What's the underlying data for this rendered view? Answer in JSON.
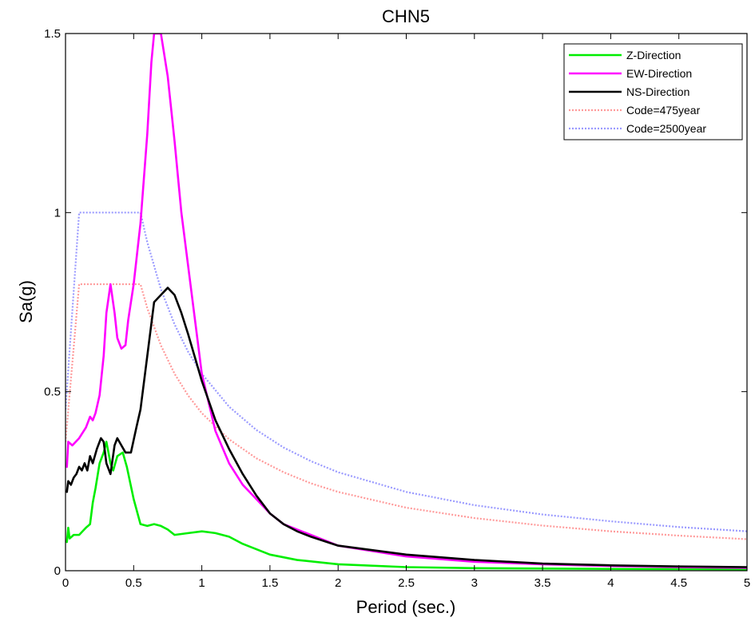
{
  "chart_data": {
    "type": "line",
    "title": "CHN5",
    "xlabel": "Period (sec.)",
    "ylabel": "Sa(g)",
    "xlim": [
      0,
      5
    ],
    "ylim": [
      0,
      1.5
    ],
    "x_ticks": [
      "0",
      "0.5",
      "1",
      "1.5",
      "2",
      "2.5",
      "3",
      "3.5",
      "4",
      "4.5",
      "5"
    ],
    "y_ticks": [
      "0",
      "0.5",
      "1",
      "1.5"
    ],
    "grid": false,
    "legend_position": "top-right",
    "series": [
      {
        "name": "Z-Direction",
        "color": "#00ee00",
        "style": "solid",
        "points": [
          [
            0.01,
            0.08
          ],
          [
            0.02,
            0.12
          ],
          [
            0.03,
            0.09
          ],
          [
            0.06,
            0.1
          ],
          [
            0.1,
            0.1
          ],
          [
            0.15,
            0.12
          ],
          [
            0.18,
            0.13
          ],
          [
            0.2,
            0.19
          ],
          [
            0.22,
            0.23
          ],
          [
            0.25,
            0.3
          ],
          [
            0.28,
            0.33
          ],
          [
            0.3,
            0.36
          ],
          [
            0.33,
            0.3
          ],
          [
            0.35,
            0.28
          ],
          [
            0.38,
            0.32
          ],
          [
            0.42,
            0.33
          ],
          [
            0.45,
            0.29
          ],
          [
            0.5,
            0.2
          ],
          [
            0.55,
            0.13
          ],
          [
            0.6,
            0.125
          ],
          [
            0.65,
            0.13
          ],
          [
            0.7,
            0.125
          ],
          [
            0.75,
            0.115
          ],
          [
            0.8,
            0.1
          ],
          [
            0.9,
            0.105
          ],
          [
            1.0,
            0.11
          ],
          [
            1.1,
            0.105
          ],
          [
            1.2,
            0.095
          ],
          [
            1.3,
            0.075
          ],
          [
            1.4,
            0.06
          ],
          [
            1.5,
            0.045
          ],
          [
            1.7,
            0.03
          ],
          [
            2.0,
            0.018
          ],
          [
            2.5,
            0.01
          ],
          [
            3.0,
            0.007
          ],
          [
            4.0,
            0.005
          ],
          [
            5.0,
            0.004
          ]
        ]
      },
      {
        "name": "EW-Direction",
        "color": "#ff00ff",
        "style": "solid",
        "points": [
          [
            0.01,
            0.29
          ],
          [
            0.02,
            0.36
          ],
          [
            0.05,
            0.35
          ],
          [
            0.1,
            0.37
          ],
          [
            0.15,
            0.4
          ],
          [
            0.18,
            0.43
          ],
          [
            0.2,
            0.42
          ],
          [
            0.22,
            0.44
          ],
          [
            0.25,
            0.49
          ],
          [
            0.28,
            0.6
          ],
          [
            0.3,
            0.72
          ],
          [
            0.33,
            0.8
          ],
          [
            0.36,
            0.72
          ],
          [
            0.38,
            0.65
          ],
          [
            0.41,
            0.62
          ],
          [
            0.44,
            0.63
          ],
          [
            0.46,
            0.7
          ],
          [
            0.5,
            0.8
          ],
          [
            0.55,
            0.97
          ],
          [
            0.6,
            1.22
          ],
          [
            0.63,
            1.42
          ],
          [
            0.65,
            1.5
          ],
          [
            0.68,
            1.5
          ],
          [
            0.7,
            1.5
          ],
          [
            0.75,
            1.38
          ],
          [
            0.8,
            1.2
          ],
          [
            0.85,
            1.0
          ],
          [
            0.9,
            0.85
          ],
          [
            0.95,
            0.7
          ],
          [
            1.0,
            0.55
          ],
          [
            1.1,
            0.39
          ],
          [
            1.2,
            0.3
          ],
          [
            1.3,
            0.24
          ],
          [
            1.4,
            0.2
          ],
          [
            1.5,
            0.16
          ],
          [
            1.6,
            0.13
          ],
          [
            1.7,
            0.115
          ],
          [
            1.8,
            0.1
          ],
          [
            2.0,
            0.07
          ],
          [
            2.5,
            0.04
          ],
          [
            3.0,
            0.025
          ],
          [
            3.5,
            0.018
          ],
          [
            4.0,
            0.013
          ],
          [
            4.5,
            0.01
          ],
          [
            5.0,
            0.008
          ]
        ]
      },
      {
        "name": "NS-Direction",
        "color": "#000000",
        "style": "solid",
        "points": [
          [
            0.01,
            0.22
          ],
          [
            0.02,
            0.25
          ],
          [
            0.04,
            0.24
          ],
          [
            0.06,
            0.26
          ],
          [
            0.08,
            0.27
          ],
          [
            0.1,
            0.29
          ],
          [
            0.12,
            0.28
          ],
          [
            0.14,
            0.3
          ],
          [
            0.16,
            0.28
          ],
          [
            0.18,
            0.32
          ],
          [
            0.2,
            0.3
          ],
          [
            0.23,
            0.34
          ],
          [
            0.26,
            0.37
          ],
          [
            0.28,
            0.36
          ],
          [
            0.3,
            0.3
          ],
          [
            0.33,
            0.27
          ],
          [
            0.36,
            0.35
          ],
          [
            0.38,
            0.37
          ],
          [
            0.41,
            0.35
          ],
          [
            0.44,
            0.33
          ],
          [
            0.48,
            0.33
          ],
          [
            0.52,
            0.4
          ],
          [
            0.55,
            0.45
          ],
          [
            0.6,
            0.6
          ],
          [
            0.65,
            0.75
          ],
          [
            0.7,
            0.77
          ],
          [
            0.75,
            0.79
          ],
          [
            0.8,
            0.77
          ],
          [
            0.85,
            0.72
          ],
          [
            0.9,
            0.66
          ],
          [
            1.0,
            0.53
          ],
          [
            1.1,
            0.42
          ],
          [
            1.2,
            0.34
          ],
          [
            1.3,
            0.27
          ],
          [
            1.4,
            0.21
          ],
          [
            1.5,
            0.16
          ],
          [
            1.6,
            0.13
          ],
          [
            1.7,
            0.11
          ],
          [
            1.8,
            0.095
          ],
          [
            2.0,
            0.07
          ],
          [
            2.5,
            0.045
          ],
          [
            3.0,
            0.03
          ],
          [
            3.5,
            0.02
          ],
          [
            4.0,
            0.015
          ],
          [
            4.5,
            0.012
          ],
          [
            5.0,
            0.01
          ]
        ]
      },
      {
        "name": "Code=475year",
        "color": "#ff9a9a",
        "style": "dotted",
        "points": [
          [
            0.0,
            0.36
          ],
          [
            0.1,
            0.8
          ],
          [
            0.55,
            0.8
          ],
          [
            0.6,
            0.733
          ],
          [
            0.7,
            0.629
          ],
          [
            0.8,
            0.55
          ],
          [
            0.9,
            0.489
          ],
          [
            1.0,
            0.44
          ],
          [
            1.2,
            0.367
          ],
          [
            1.4,
            0.314
          ],
          [
            1.6,
            0.275
          ],
          [
            1.8,
            0.244
          ],
          [
            2.0,
            0.22
          ],
          [
            2.5,
            0.176
          ],
          [
            3.0,
            0.147
          ],
          [
            3.5,
            0.126
          ],
          [
            4.0,
            0.11
          ],
          [
            4.5,
            0.098
          ],
          [
            5.0,
            0.088
          ]
        ]
      },
      {
        "name": "Code=2500year",
        "color": "#9a9aff",
        "style": "dotted",
        "points": [
          [
            0.0,
            0.45
          ],
          [
            0.1,
            1.0
          ],
          [
            0.55,
            1.0
          ],
          [
            0.6,
            0.917
          ],
          [
            0.7,
            0.786
          ],
          [
            0.8,
            0.688
          ],
          [
            0.9,
            0.611
          ],
          [
            1.0,
            0.55
          ],
          [
            1.2,
            0.458
          ],
          [
            1.4,
            0.393
          ],
          [
            1.6,
            0.344
          ],
          [
            1.8,
            0.306
          ],
          [
            2.0,
            0.275
          ],
          [
            2.5,
            0.22
          ],
          [
            3.0,
            0.183
          ],
          [
            3.5,
            0.157
          ],
          [
            4.0,
            0.138
          ],
          [
            4.5,
            0.122
          ],
          [
            5.0,
            0.11
          ]
        ]
      }
    ]
  }
}
